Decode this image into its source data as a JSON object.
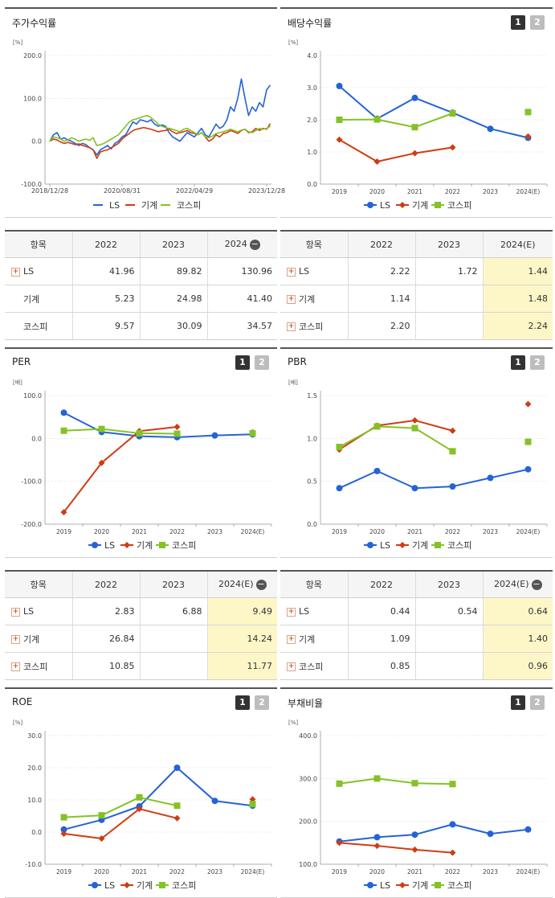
{
  "colors": {
    "ls": "#2563d6",
    "machinery": "#cf3c12",
    "kospi": "#84c225",
    "axis": "#999999",
    "grid": "#dddddd"
  },
  "legend": {
    "ls": "LS",
    "machinery": "기계",
    "kospi": "코스피"
  },
  "pager": {
    "page1": "1",
    "page2": "2"
  },
  "charts": {
    "stock_return": {
      "title": "주가수익률",
      "unit": "[%]",
      "chart_data": {
        "type": "line",
        "x_ticks": [
          "2018/12/28",
          "2020/08/31",
          "2022/04/29",
          "2023/12/28"
        ],
        "y_ticks": [
          "200.0",
          "100.0",
          "0.0",
          "-100.0"
        ],
        "ylim": [
          -100,
          200
        ],
        "x_domain": [
          0,
          60
        ],
        "series": [
          {
            "name": "LS",
            "color_key": "ls",
            "values": [
              0,
              15,
              20,
              5,
              8,
              3,
              0,
              -5,
              -10,
              -5,
              -8,
              -15,
              -20,
              -32,
              -20,
              -15,
              -10,
              -18,
              -5,
              0,
              10,
              15,
              30,
              45,
              40,
              50,
              48,
              45,
              50,
              40,
              35,
              38,
              35,
              20,
              10,
              5,
              0,
              10,
              20,
              15,
              10,
              20,
              30,
              15,
              10,
              25,
              40,
              30,
              35,
              50,
              80,
              70,
              100,
              145,
              100,
              60,
              80,
              70,
              90,
              80,
              120,
              131
            ]
          },
          {
            "name": "기계",
            "color_key": "machinery",
            "values": [
              0,
              5,
              3,
              -2,
              -5,
              -3,
              -5,
              -8,
              -6,
              -10,
              -12,
              -15,
              -20,
              -40,
              -25,
              -22,
              -20,
              -15,
              -10,
              -5,
              5,
              12,
              18,
              25,
              28,
              30,
              32,
              30,
              28,
              25,
              22,
              24,
              25,
              28,
              22,
              18,
              20,
              22,
              25,
              20,
              18,
              15,
              20,
              10,
              0,
              5,
              15,
              10,
              18,
              20,
              25,
              22,
              18,
              25,
              28,
              20,
              22,
              30,
              25,
              30,
              28,
              41
            ]
          },
          {
            "name": "코스피",
            "color_key": "kospi",
            "values": [
              0,
              10,
              8,
              5,
              0,
              3,
              8,
              5,
              0,
              3,
              5,
              2,
              8,
              -10,
              -8,
              -5,
              0,
              5,
              10,
              15,
              25,
              35,
              45,
              50,
              52,
              55,
              58,
              60,
              55,
              48,
              40,
              35,
              32,
              30,
              28,
              25,
              22,
              28,
              30,
              25,
              20,
              15,
              20,
              10,
              8,
              12,
              18,
              20,
              22,
              25,
              28,
              25,
              22,
              26,
              28,
              22,
              20,
              25,
              30,
              28,
              30,
              35
            ]
          }
        ]
      }
    },
    "dividend_yield": {
      "title": "배당수익률",
      "unit": "[%]",
      "chart_data": {
        "type": "line",
        "categories": [
          "2019",
          "2020",
          "2021",
          "2022",
          "2023",
          "2024(E)"
        ],
        "y_ticks": [
          "4.0",
          "3.0",
          "2.0",
          "1.0",
          "0.0"
        ],
        "ylim": [
          0,
          4
        ],
        "series": [
          {
            "name": "LS",
            "color_key": "ls",
            "values": [
              3.05,
              2.03,
              2.68,
              2.22,
              1.72,
              1.44
            ]
          },
          {
            "name": "기계",
            "color_key": "machinery",
            "values": [
              1.38,
              0.7,
              0.96,
              1.14,
              null,
              1.48
            ]
          },
          {
            "name": "코스피",
            "color_key": "kospi",
            "values": [
              2.0,
              2.01,
              1.77,
              2.2,
              null,
              2.24
            ]
          }
        ]
      }
    },
    "per": {
      "title": "PER",
      "unit": "[배]",
      "chart_data": {
        "type": "line",
        "categories": [
          "2019",
          "2020",
          "2021",
          "2022",
          "2023",
          "2024(E)"
        ],
        "y_ticks": [
          "100.0",
          "0.0",
          "-100.0",
          "-200.0"
        ],
        "ylim": [
          -200,
          100
        ],
        "series": [
          {
            "name": "LS",
            "color_key": "ls",
            "values": [
              60,
              15,
              5,
              2.83,
              6.88,
              9.49
            ]
          },
          {
            "name": "기계",
            "color_key": "machinery",
            "values": [
              -172,
              -57,
              17,
              26.84,
              null,
              14.24
            ]
          },
          {
            "name": "코스피",
            "color_key": "kospi",
            "values": [
              18,
              22,
              12,
              10.85,
              null,
              11.77
            ]
          }
        ]
      }
    },
    "pbr": {
      "title": "PBR",
      "unit": "[배]",
      "chart_data": {
        "type": "line",
        "categories": [
          "2019",
          "2020",
          "2021",
          "2022",
          "2023",
          "2024(E)"
        ],
        "y_ticks": [
          "1.5",
          "1.0",
          "0.5",
          "0.0"
        ],
        "ylim": [
          0,
          1.5
        ],
        "series": [
          {
            "name": "LS",
            "color_key": "ls",
            "values": [
              0.42,
              0.62,
              0.42,
              0.44,
              0.54,
              0.64
            ]
          },
          {
            "name": "기계",
            "color_key": "machinery",
            "values": [
              0.87,
              1.15,
              1.21,
              1.09,
              null,
              1.4
            ]
          },
          {
            "name": "코스피",
            "color_key": "kospi",
            "values": [
              0.9,
              1.14,
              1.12,
              0.85,
              null,
              0.96
            ]
          }
        ]
      }
    },
    "roe": {
      "title": "ROE",
      "unit": "[%]",
      "chart_data": {
        "type": "line",
        "categories": [
          "2019",
          "2020",
          "2021",
          "2022",
          "2023",
          "2024(E)"
        ],
        "y_ticks": [
          "30.0",
          "20.0",
          "10.0",
          "0.0",
          "-10.0"
        ],
        "ylim": [
          -10,
          30
        ],
        "series": [
          {
            "name": "LS",
            "color_key": "ls",
            "values": [
              0.8,
              3.8,
              8.0,
              20.0,
              9.7,
              8.2
            ]
          },
          {
            "name": "기계",
            "color_key": "machinery",
            "values": [
              -0.5,
              -2.0,
              7.2,
              4.3,
              null,
              10.2
            ]
          },
          {
            "name": "코스피",
            "color_key": "kospi",
            "values": [
              4.6,
              5.2,
              10.8,
              8.2,
              null,
              8.7
            ]
          }
        ]
      }
    },
    "debt_ratio": {
      "title": "부채비율",
      "unit": "[%]",
      "chart_data": {
        "type": "line",
        "categories": [
          "2019",
          "2020",
          "2021",
          "2022",
          "2023",
          "2024(E)"
        ],
        "y_ticks": [
          "400.0",
          "300.0",
          "200.0",
          "100.0"
        ],
        "ylim": [
          100,
          400
        ],
        "series": [
          {
            "name": "LS",
            "color_key": "ls",
            "values": [
              153,
              163,
              169,
              193,
              171,
              181
            ]
          },
          {
            "name": "기계",
            "color_key": "machinery",
            "values": [
              150,
              143,
              134,
              127,
              null,
              null
            ]
          },
          {
            "name": "코스피",
            "color_key": "kospi",
            "values": [
              288,
              300,
              289,
              287,
              null,
              null
            ]
          }
        ]
      }
    }
  },
  "tables": {
    "stock_return": {
      "headers": [
        "항목",
        "2022",
        "2023",
        "2024"
      ],
      "show_minus": true,
      "highlight_last": false,
      "rows": [
        {
          "label": "LS",
          "plus": true,
          "values": [
            "41.96",
            "89.82",
            "130.96"
          ]
        },
        {
          "label": "기계",
          "plus": false,
          "values": [
            "5.23",
            "24.98",
            "41.40"
          ]
        },
        {
          "label": "코스피",
          "plus": false,
          "values": [
            "9.57",
            "30.09",
            "34.57"
          ]
        }
      ]
    },
    "dividend_yield": {
      "headers": [
        "항목",
        "2022",
        "2023",
        "2024(E)"
      ],
      "show_minus": false,
      "highlight_last": true,
      "rows": [
        {
          "label": "LS",
          "plus": true,
          "values": [
            "2.22",
            "1.72",
            "1.44"
          ]
        },
        {
          "label": "기계",
          "plus": true,
          "values": [
            "1.14",
            "",
            "1.48"
          ]
        },
        {
          "label": "코스피",
          "plus": true,
          "values": [
            "2.20",
            "",
            "2.24"
          ]
        }
      ]
    },
    "per": {
      "headers": [
        "항목",
        "2022",
        "2023",
        "2024(E)"
      ],
      "show_minus": true,
      "highlight_last": true,
      "rows": [
        {
          "label": "LS",
          "plus": true,
          "values": [
            "2.83",
            "6.88",
            "9.49"
          ]
        },
        {
          "label": "기계",
          "plus": true,
          "values": [
            "26.84",
            "",
            "14.24"
          ]
        },
        {
          "label": "코스피",
          "plus": true,
          "values": [
            "10.85",
            "",
            "11.77"
          ]
        }
      ]
    },
    "pbr": {
      "headers": [
        "항목",
        "2022",
        "2023",
        "2024(E)"
      ],
      "show_minus": true,
      "highlight_last": true,
      "rows": [
        {
          "label": "LS",
          "plus": true,
          "values": [
            "0.44",
            "0.54",
            "0.64"
          ]
        },
        {
          "label": "기계",
          "plus": true,
          "values": [
            "1.09",
            "",
            "1.40"
          ]
        },
        {
          "label": "코스피",
          "plus": true,
          "values": [
            "0.85",
            "",
            "0.96"
          ]
        }
      ]
    }
  }
}
